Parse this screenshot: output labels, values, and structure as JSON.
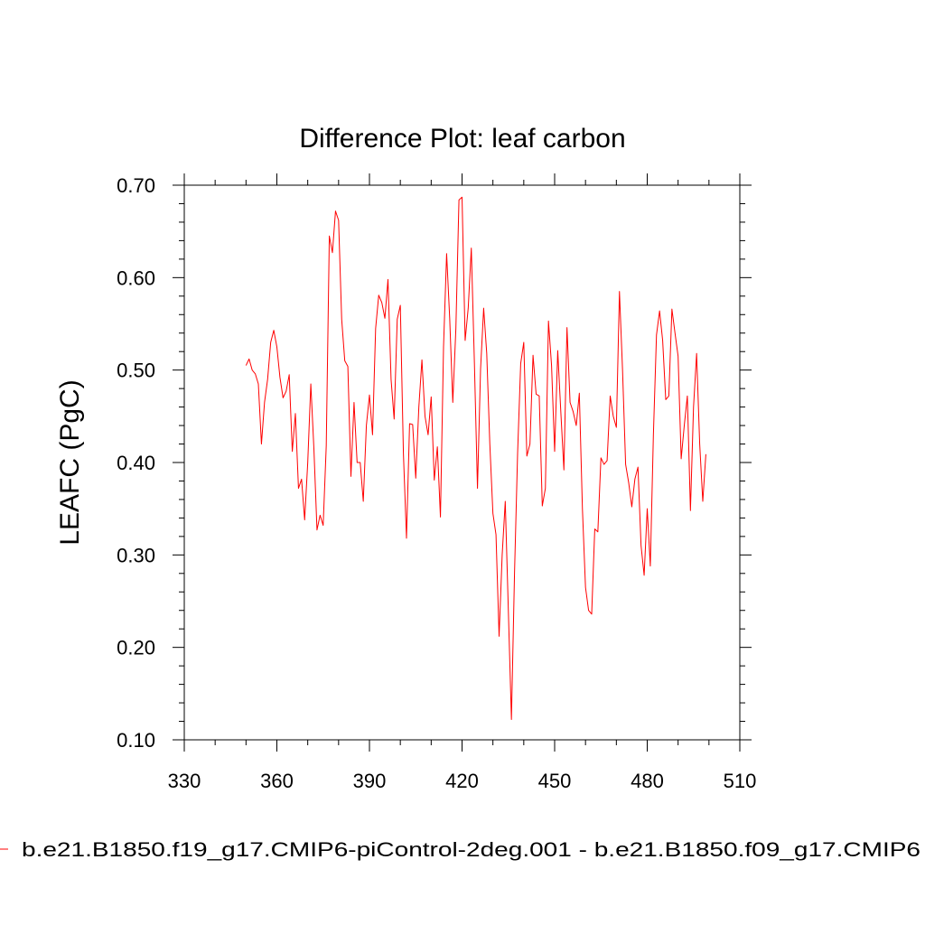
{
  "chart_data": {
    "type": "line",
    "title": "Difference Plot: leaf carbon",
    "xlabel": "",
    "ylabel": "LEAFC  (PgC)",
    "xlim": [
      330,
      510
    ],
    "ylim": [
      0.1,
      0.7
    ],
    "x_ticks": [
      330,
      360,
      390,
      420,
      450,
      480,
      510
    ],
    "x_tick_labels": [
      "330",
      "360",
      "390",
      "420",
      "450",
      "480",
      "510"
    ],
    "y_ticks": [
      0.1,
      0.2,
      0.3,
      0.4,
      0.5,
      0.6,
      0.7
    ],
    "y_tick_labels": [
      "0.10",
      "0.20",
      "0.30",
      "0.40",
      "0.50",
      "0.60",
      "0.70"
    ],
    "grid": false,
    "legend_position": "bottom",
    "series": [
      {
        "name": "b.e21.B1850.f19_g17.CMIP6-piControl-2deg.001 - b.e21.B1850.f09_g17.CMIP6",
        "color": "#ff0000",
        "x": [
          350,
          351,
          352,
          353,
          354,
          355,
          356,
          357,
          358,
          359,
          360,
          361,
          362,
          363,
          364,
          365,
          366,
          367,
          368,
          369,
          370,
          371,
          372,
          373,
          374,
          375,
          376,
          377,
          378,
          379,
          380,
          381,
          382,
          383,
          384,
          385,
          386,
          387,
          388,
          389,
          390,
          391,
          392,
          393,
          394,
          395,
          396,
          397,
          398,
          399,
          400,
          401,
          402,
          403,
          404,
          405,
          406,
          407,
          408,
          409,
          410,
          411,
          412,
          413,
          414,
          415,
          416,
          417,
          418,
          419,
          420,
          421,
          422,
          423,
          424,
          425,
          426,
          427,
          428,
          429,
          430,
          431,
          432,
          433,
          434,
          435,
          436,
          437,
          438,
          439,
          440,
          441,
          442,
          443,
          444,
          445,
          446,
          447,
          448,
          449,
          450,
          451,
          452,
          453,
          454,
          455,
          456,
          457,
          458,
          459,
          460,
          461,
          462,
          463,
          464,
          465,
          466,
          467,
          468,
          469,
          470,
          471,
          472,
          473,
          474,
          475,
          476,
          477,
          478,
          479,
          480,
          481,
          482,
          483,
          484,
          485,
          486,
          487,
          488,
          489,
          490,
          491,
          492,
          493,
          494,
          495,
          496,
          497,
          498,
          499
        ],
        "values": [
          0.505,
          0.512,
          0.5,
          0.496,
          0.485,
          0.42,
          0.465,
          0.49,
          0.53,
          0.543,
          0.525,
          0.492,
          0.47,
          0.477,
          0.495,
          0.412,
          0.453,
          0.372,
          0.382,
          0.338,
          0.4,
          0.485,
          0.415,
          0.327,
          0.343,
          0.332,
          0.418,
          0.645,
          0.627,
          0.672,
          0.662,
          0.555,
          0.51,
          0.504,
          0.385,
          0.465,
          0.4,
          0.4,
          0.358,
          0.44,
          0.473,
          0.43,
          0.545,
          0.581,
          0.573,
          0.556,
          0.598,
          0.49,
          0.447,
          0.555,
          0.57,
          0.41,
          0.318,
          0.442,
          0.441,
          0.383,
          0.46,
          0.511,
          0.45,
          0.43,
          0.471,
          0.381,
          0.417,
          0.341,
          0.525,
          0.626,
          0.556,
          0.465,
          0.545,
          0.684,
          0.687,
          0.532,
          0.567,
          0.632,
          0.508,
          0.372,
          0.501,
          0.567,
          0.518,
          0.42,
          0.345,
          0.322,
          0.212,
          0.3,
          0.358,
          0.24,
          0.122,
          0.28,
          0.41,
          0.507,
          0.53,
          0.407,
          0.42,
          0.516,
          0.474,
          0.472,
          0.353,
          0.372,
          0.553,
          0.505,
          0.412,
          0.521,
          0.455,
          0.392,
          0.546,
          0.465,
          0.455,
          0.44,
          0.475,
          0.35,
          0.265,
          0.24,
          0.236,
          0.328,
          0.325,
          0.405,
          0.398,
          0.402,
          0.472,
          0.45,
          0.438,
          0.585,
          0.5,
          0.398,
          0.378,
          0.352,
          0.382,
          0.395,
          0.31,
          0.278,
          0.35,
          0.288,
          0.43,
          0.538,
          0.564,
          0.532,
          0.468,
          0.472,
          0.566,
          0.54,
          0.515,
          0.404,
          0.44,
          0.472,
          0.348,
          0.46,
          0.518,
          0.42,
          0.358,
          0.409
        ]
      }
    ]
  }
}
